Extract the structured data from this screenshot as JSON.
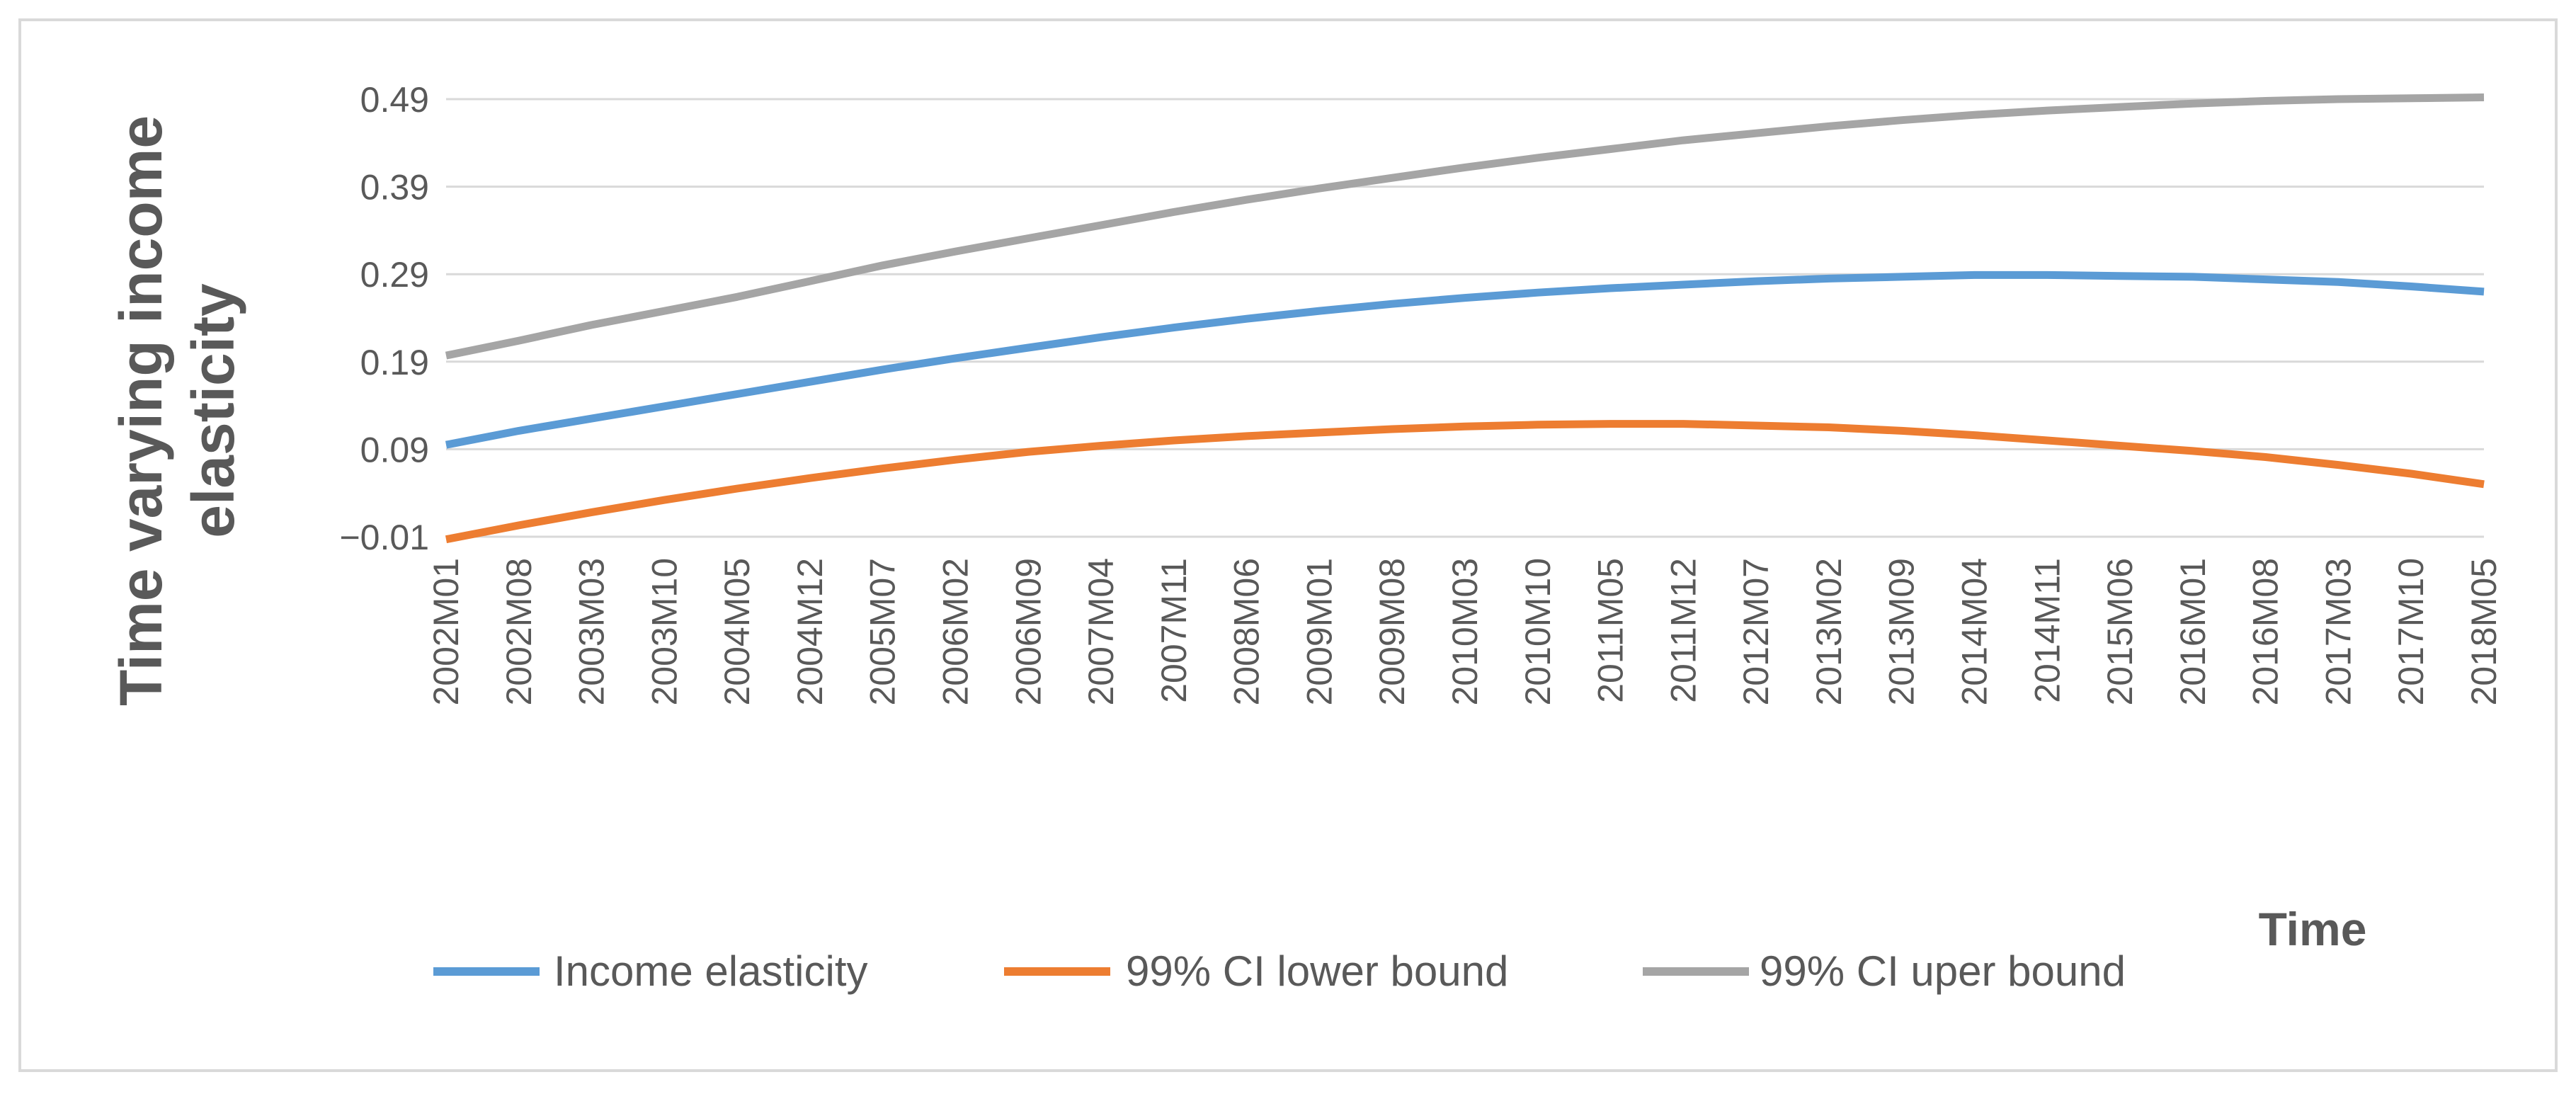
{
  "chart_data": {
    "type": "line",
    "title": "",
    "ylabel_lines": [
      "Time varying income",
      "elasticity"
    ],
    "xlabel": "Time",
    "y_ticks": [
      "0.49",
      "0.39",
      "0.29",
      "0.19",
      "0.09",
      "-0.01"
    ],
    "ylim": [
      -0.01,
      0.49
    ],
    "x_start": "2002M01",
    "x_end": "2018M05",
    "x_tick_step_months": 7,
    "categories": [
      "2002M01",
      "2002M08",
      "2003M03",
      "2003M10",
      "2004M05",
      "2004M12",
      "2005M07",
      "2006M02",
      "2006M09",
      "2007M04",
      "2007M11",
      "2008M06",
      "2009M01",
      "2009M08",
      "2010M03",
      "2010M10",
      "2011M05",
      "2011M12",
      "2012M07",
      "2013M02",
      "2013M09",
      "2014M04",
      "2014M11",
      "2015M06",
      "2016M01",
      "2016M08",
      "2017M03",
      "2017M10",
      "2018M05"
    ],
    "series": [
      {
        "name": "Income elasticity",
        "color": "#5B9BD5",
        "values": [
          0.095,
          0.111,
          0.125,
          0.139,
          0.153,
          0.167,
          0.181,
          0.194,
          0.206,
          0.218,
          0.229,
          0.239,
          0.248,
          0.256,
          0.263,
          0.269,
          0.274,
          0.278,
          0.282,
          0.285,
          0.287,
          0.289,
          0.289,
          0.288,
          0.287,
          0.284,
          0.281,
          0.276,
          0.27
        ]
      },
      {
        "name": "99% CI lower bound",
        "color": "#ED7D31",
        "values": [
          -0.013,
          0.003,
          0.018,
          0.032,
          0.045,
          0.057,
          0.068,
          0.078,
          0.087,
          0.094,
          0.1,
          0.105,
          0.109,
          0.113,
          0.116,
          0.118,
          0.119,
          0.119,
          0.117,
          0.115,
          0.111,
          0.106,
          0.1,
          0.094,
          0.088,
          0.081,
          0.072,
          0.062,
          0.05
        ]
      },
      {
        "name": "99% CI uper bound",
        "color": "#A5A5A5",
        "values": [
          0.197,
          0.214,
          0.232,
          0.248,
          0.264,
          0.282,
          0.3,
          0.316,
          0.331,
          0.346,
          0.361,
          0.375,
          0.388,
          0.4,
          0.412,
          0.423,
          0.433,
          0.443,
          0.451,
          0.459,
          0.466,
          0.472,
          0.477,
          0.481,
          0.485,
          0.488,
          0.49,
          0.491,
          0.492
        ]
      }
    ],
    "legend_position": "bottom",
    "grid": true
  }
}
